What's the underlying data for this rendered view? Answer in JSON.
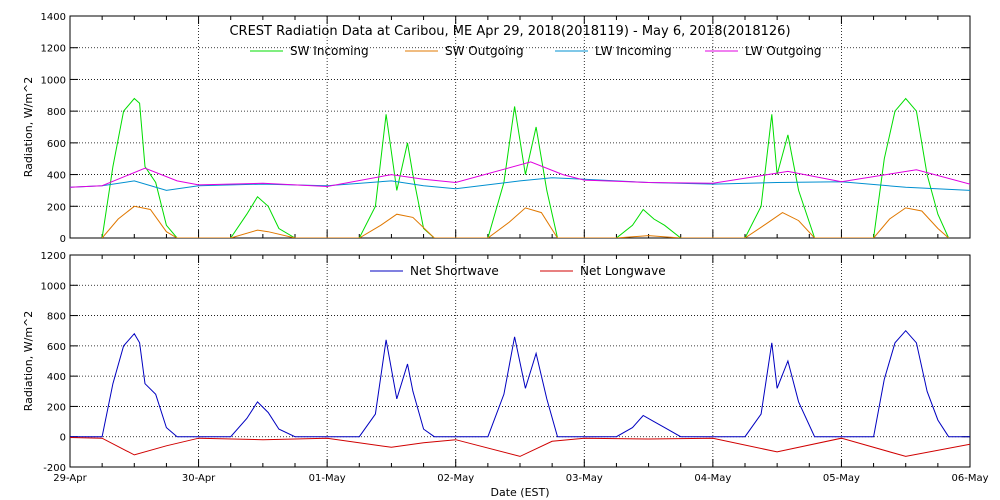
{
  "chart_data": [
    {
      "type": "line",
      "title": "CREST Radiation Data at Caribou, ME   Apr 29, 2018(2018119) - May  6, 2018(2018126)",
      "xlabel": "",
      "ylabel": "Radiation, W/m^2",
      "ylim": [
        0,
        1400
      ],
      "yticks": [
        0,
        200,
        400,
        600,
        800,
        1000,
        1200,
        1400
      ],
      "xlim": [
        "2018-04-29",
        "2018-05-06"
      ],
      "grid": true,
      "legend": "top",
      "series": [
        {
          "name": "SW Incoming",
          "color": "#00dd00",
          "x": [
            "2018-04-29 06:00",
            "2018-04-29 08:00",
            "2018-04-29 10:00",
            "2018-04-29 12:00",
            "2018-04-29 13:00",
            "2018-04-29 14:00",
            "2018-04-29 16:00",
            "2018-04-29 18:00",
            "2018-04-29 20:00",
            "2018-04-30 06:00",
            "2018-04-30 09:00",
            "2018-04-30 11:00",
            "2018-04-30 13:00",
            "2018-04-30 15:00",
            "2018-04-30 18:00",
            "2018-05-01 06:00",
            "2018-05-01 09:00",
            "2018-05-01 11:00",
            "2018-05-01 13:00",
            "2018-05-01 15:00",
            "2018-05-01 16:00",
            "2018-05-01 18:00",
            "2018-05-01 20:00",
            "2018-05-02 06:00",
            "2018-05-02 09:00",
            "2018-05-02 11:00",
            "2018-05-02 13:00",
            "2018-05-02 15:00",
            "2018-05-02 17:00",
            "2018-05-02 19:00",
            "2018-05-03 06:00",
            "2018-05-03 09:00",
            "2018-05-03 11:00",
            "2018-05-03 13:00",
            "2018-05-03 15:00",
            "2018-05-03 18:00",
            "2018-05-04 06:00",
            "2018-05-04 09:00",
            "2018-05-04 11:00",
            "2018-05-04 12:00",
            "2018-05-04 14:00",
            "2018-05-04 16:00",
            "2018-05-04 19:00",
            "2018-05-05 06:00",
            "2018-05-05 08:00",
            "2018-05-05 10:00",
            "2018-05-05 12:00",
            "2018-05-05 14:00",
            "2018-05-05 16:00",
            "2018-05-05 18:00",
            "2018-05-05 20:00"
          ],
          "y": [
            0,
            450,
            800,
            880,
            850,
            450,
            350,
            80,
            0,
            0,
            150,
            260,
            200,
            60,
            0,
            0,
            200,
            780,
            300,
            600,
            400,
            60,
            0,
            0,
            350,
            830,
            400,
            700,
            300,
            0,
            0,
            80,
            180,
            120,
            80,
            0,
            0,
            200,
            780,
            400,
            650,
            300,
            0,
            0,
            500,
            800,
            880,
            800,
            400,
            150,
            0
          ]
        },
        {
          "name": "SW Outgoing",
          "color": "#e07800",
          "x": [
            "2018-04-29 06:00",
            "2018-04-29 09:00",
            "2018-04-29 12:00",
            "2018-04-29 15:00",
            "2018-04-29 18:00",
            "2018-04-29 20:00",
            "2018-04-30 06:00",
            "2018-04-30 11:00",
            "2018-04-30 13:00",
            "2018-04-30 18:00",
            "2018-05-01 06:00",
            "2018-05-01 10:00",
            "2018-05-01 13:00",
            "2018-05-01 16:00",
            "2018-05-01 20:00",
            "2018-05-02 06:00",
            "2018-05-02 10:00",
            "2018-05-02 13:00",
            "2018-05-02 16:00",
            "2018-05-02 19:00",
            "2018-05-03 06:00",
            "2018-05-03 12:00",
            "2018-05-03 18:00",
            "2018-05-04 06:00",
            "2018-05-04 10:00",
            "2018-05-04 13:00",
            "2018-05-04 16:00",
            "2018-05-04 19:00",
            "2018-05-05 06:00",
            "2018-05-05 09:00",
            "2018-05-05 12:00",
            "2018-05-05 15:00",
            "2018-05-05 18:00",
            "2018-05-05 20:00"
          ],
          "y": [
            0,
            120,
            200,
            180,
            40,
            0,
            0,
            50,
            40,
            0,
            0,
            80,
            150,
            130,
            0,
            0,
            100,
            190,
            160,
            0,
            0,
            15,
            0,
            0,
            90,
            160,
            110,
            0,
            0,
            120,
            190,
            170,
            60,
            0
          ]
        },
        {
          "name": "LW Incoming",
          "color": "#0090d0",
          "x": [
            "2018-04-29 00:00",
            "2018-04-29 06:00",
            "2018-04-29 12:00",
            "2018-04-29 18:00",
            "2018-04-30 00:00",
            "2018-04-30 12:00",
            "2018-05-01 00:00",
            "2018-05-01 12:00",
            "2018-05-01 18:00",
            "2018-05-02 00:00",
            "2018-05-02 12:00",
            "2018-05-02 18:00",
            "2018-05-03 00:00",
            "2018-05-03 12:00",
            "2018-05-04 00:00",
            "2018-05-04 12:00",
            "2018-05-05 00:00",
            "2018-05-05 12:00",
            "2018-05-06 00:00"
          ],
          "y": [
            320,
            330,
            360,
            300,
            330,
            340,
            330,
            360,
            330,
            310,
            360,
            380,
            370,
            350,
            340,
            350,
            355,
            320,
            300
          ]
        },
        {
          "name": "LW Outgoing",
          "color": "#e000e0",
          "x": [
            "2018-04-29 00:00",
            "2018-04-29 06:00",
            "2018-04-29 14:00",
            "2018-04-29 20:00",
            "2018-04-30 00:00",
            "2018-04-30 12:00",
            "2018-05-01 00:00",
            "2018-05-01 12:00",
            "2018-05-01 18:00",
            "2018-05-02 00:00",
            "2018-05-02 14:00",
            "2018-05-02 20:00",
            "2018-05-03 00:00",
            "2018-05-03 12:00",
            "2018-05-04 00:00",
            "2018-05-04 14:00",
            "2018-05-05 00:00",
            "2018-05-05 14:00",
            "2018-05-06 00:00"
          ],
          "y": [
            320,
            330,
            440,
            360,
            335,
            345,
            325,
            400,
            370,
            350,
            480,
            400,
            365,
            350,
            345,
            420,
            355,
            430,
            340
          ]
        }
      ]
    },
    {
      "type": "line",
      "title": "",
      "xlabel": "Date (EST)",
      "ylabel": "Radiation, W/m^2",
      "ylim": [
        -200,
        1200
      ],
      "yticks": [
        -200,
        0,
        200,
        400,
        600,
        800,
        1000,
        1200
      ],
      "xlim": [
        "2018-04-29",
        "2018-05-06"
      ],
      "xticks": [
        "29-Apr",
        "30-Apr",
        "01-May",
        "02-May",
        "03-May",
        "04-May",
        "05-May",
        "06-May"
      ],
      "grid": true,
      "legend": "top",
      "series": [
        {
          "name": "Net Shortwave",
          "color": "#0000c0",
          "x": [
            "2018-04-29 00:00",
            "2018-04-29 06:00",
            "2018-04-29 08:00",
            "2018-04-29 10:00",
            "2018-04-29 12:00",
            "2018-04-29 13:00",
            "2018-04-29 14:00",
            "2018-04-29 16:00",
            "2018-04-29 18:00",
            "2018-04-29 20:00",
            "2018-04-30 06:00",
            "2018-04-30 09:00",
            "2018-04-30 11:00",
            "2018-04-30 13:00",
            "2018-04-30 15:00",
            "2018-04-30 18:00",
            "2018-05-01 06:00",
            "2018-05-01 09:00",
            "2018-05-01 11:00",
            "2018-05-01 13:00",
            "2018-05-01 15:00",
            "2018-05-01 16:00",
            "2018-05-01 18:00",
            "2018-05-01 20:00",
            "2018-05-02 06:00",
            "2018-05-02 09:00",
            "2018-05-02 11:00",
            "2018-05-02 13:00",
            "2018-05-02 15:00",
            "2018-05-02 17:00",
            "2018-05-02 19:00",
            "2018-05-03 06:00",
            "2018-05-03 09:00",
            "2018-05-03 11:00",
            "2018-05-03 13:00",
            "2018-05-03 15:00",
            "2018-05-03 18:00",
            "2018-05-04 06:00",
            "2018-05-04 09:00",
            "2018-05-04 11:00",
            "2018-05-04 12:00",
            "2018-05-04 14:00",
            "2018-05-04 16:00",
            "2018-05-04 19:00",
            "2018-05-05 06:00",
            "2018-05-05 08:00",
            "2018-05-05 10:00",
            "2018-05-05 12:00",
            "2018-05-05 14:00",
            "2018-05-05 16:00",
            "2018-05-05 18:00",
            "2018-05-05 20:00",
            "2018-05-06 00:00"
          ],
          "y": [
            0,
            0,
            350,
            600,
            680,
            620,
            350,
            280,
            60,
            0,
            0,
            120,
            230,
            160,
            50,
            0,
            0,
            150,
            640,
            250,
            480,
            300,
            50,
            0,
            0,
            280,
            660,
            320,
            550,
            250,
            0,
            0,
            60,
            140,
            100,
            60,
            0,
            0,
            150,
            620,
            320,
            500,
            230,
            0,
            0,
            380,
            620,
            700,
            620,
            300,
            110,
            0,
            0
          ]
        },
        {
          "name": "Net Longwave",
          "color": "#d00000",
          "x": [
            "2018-04-29 00:00",
            "2018-04-29 06:00",
            "2018-04-29 12:00",
            "2018-04-29 18:00",
            "2018-04-30 00:00",
            "2018-04-30 12:00",
            "2018-05-01 00:00",
            "2018-05-01 12:00",
            "2018-05-01 18:00",
            "2018-05-02 00:00",
            "2018-05-02 12:00",
            "2018-05-02 18:00",
            "2018-05-03 00:00",
            "2018-05-03 12:00",
            "2018-05-04 00:00",
            "2018-05-04 12:00",
            "2018-05-05 00:00",
            "2018-05-05 12:00",
            "2018-05-06 00:00"
          ],
          "y": [
            -5,
            -10,
            -120,
            -60,
            -10,
            -20,
            -10,
            -70,
            -40,
            -20,
            -130,
            -30,
            -10,
            -15,
            -10,
            -100,
            -10,
            -130,
            -50
          ]
        }
      ]
    }
  ]
}
